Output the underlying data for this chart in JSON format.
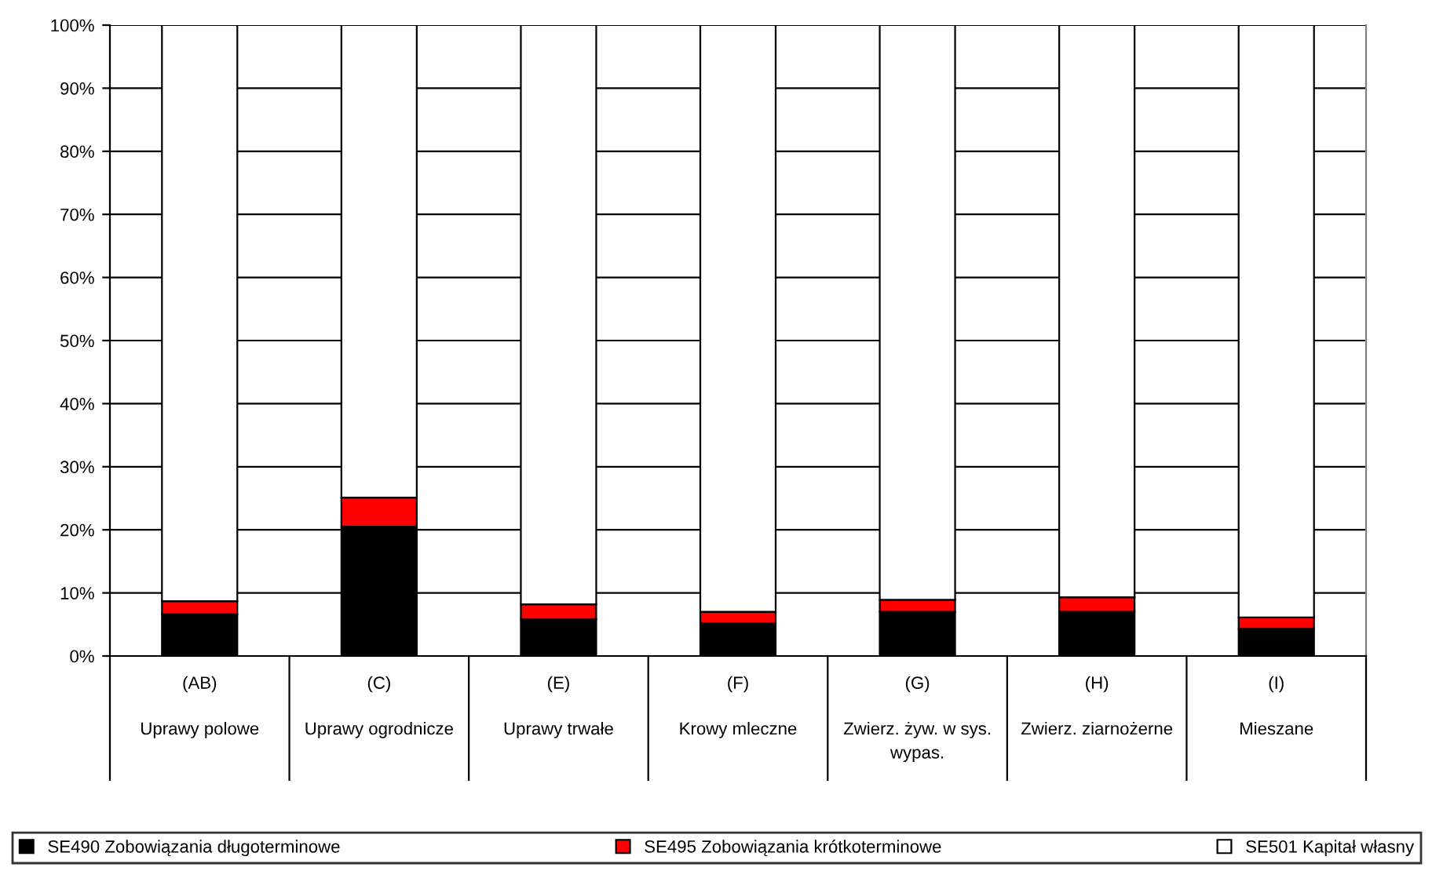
{
  "chart_data": {
    "type": "bar",
    "stacked": true,
    "categories": [
      "(AB)\nUprawy polowe",
      "(C)\nUprawy ogrodnicze",
      "(E)\nUprawy trwałe",
      "(F)\nKrowy mleczne",
      "(G)\nZwierz. żyw. w sys.\nwypas.",
      "(H)\nZwierz. ziarnożerne",
      "(I)\nMieszane"
    ],
    "series": [
      {
        "name": "SE490 Zobowiązania długoterminowe",
        "color": "#000000",
        "values": [
          6.6,
          20.5,
          5.8,
          5.2,
          7.0,
          7.0,
          4.3
        ]
      },
      {
        "name": "SE495 Zobowiązania krótkoterminowe",
        "color": "#ff0000",
        "values": [
          2.1,
          4.6,
          2.4,
          1.8,
          1.9,
          2.3,
          1.8
        ]
      },
      {
        "name": "SE501 Kapitał własny",
        "color": "#ffffff",
        "values": [
          91.3,
          74.9,
          91.8,
          93.0,
          91.1,
          90.7,
          93.9
        ]
      }
    ],
    "ylim": [
      0,
      100
    ],
    "yticks": [
      {
        "value": 0,
        "label": "0%"
      },
      {
        "value": 10,
        "label": "10%"
      },
      {
        "value": 20,
        "label": "20%"
      },
      {
        "value": 30,
        "label": "30%"
      },
      {
        "value": 40,
        "label": "40%"
      },
      {
        "value": 50,
        "label": "50%"
      },
      {
        "value": 60,
        "label": "60%"
      },
      {
        "value": 70,
        "label": "70%"
      },
      {
        "value": 80,
        "label": "80%"
      },
      {
        "value": 90,
        "label": "90%"
      },
      {
        "value": 100,
        "label": "100%"
      }
    ],
    "grid": "y",
    "legend": "bottom"
  }
}
